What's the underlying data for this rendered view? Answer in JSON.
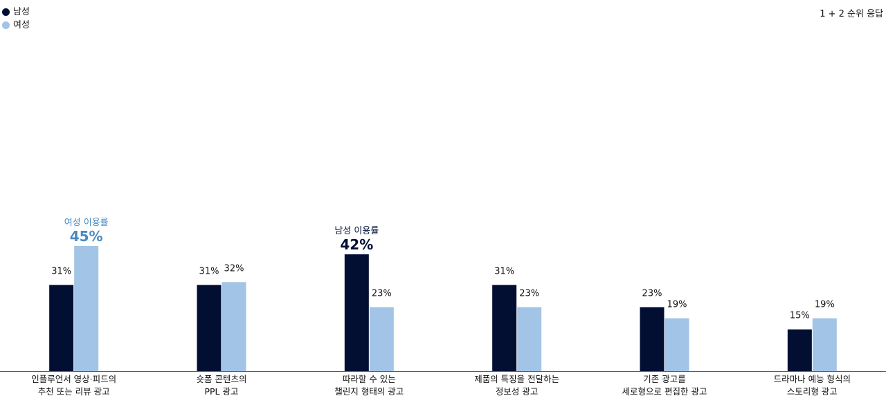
{
  "chart_data": {
    "type": "bar",
    "note": "1 + 2 순위 응답",
    "categories": [
      [
        "인플루언서 영상·피드의",
        "추천 또는 리뷰 광고"
      ],
      [
        "숏폼 콘텐츠의",
        "PPL 광고"
      ],
      [
        "따라할 수 있는",
        "챌린지 형태의 광고"
      ],
      [
        "제품의 특징을 전달하는",
        "정보성 광고"
      ],
      [
        "기존 광고를",
        "세로형으로 편집한 광고"
      ],
      [
        "드라마나 예능 형식의",
        "스토리형 광고"
      ]
    ],
    "series": [
      {
        "name": "남성",
        "color": "#020f33",
        "values": [
          31,
          31,
          42,
          31,
          23,
          15
        ]
      },
      {
        "name": "여성",
        "color": "#a2c4e6",
        "values": [
          45,
          32,
          23,
          23,
          19,
          19
        ]
      }
    ],
    "value_suffix": "%",
    "ylim": [
      0,
      100
    ],
    "highlights": [
      {
        "series": 1,
        "category": 0,
        "label": "여성 이용률",
        "value_text": "45%",
        "color": "#4a8ac2"
      },
      {
        "series": 0,
        "category": 2,
        "label": "남성 이용률",
        "value_text": "42%",
        "color": "#020f33"
      }
    ]
  }
}
